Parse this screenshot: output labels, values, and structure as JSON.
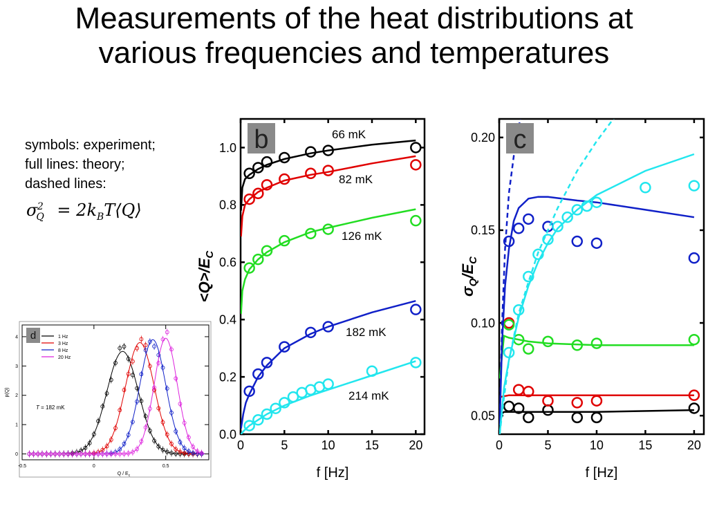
{
  "slide": {
    "title_line1": "Measurements of the heat distributions at",
    "title_line2": "various frequencies and temperatures",
    "notes": [
      "symbols: experiment;",
      "full lines: theory;",
      "dashed lines:"
    ],
    "formula": "σ_Q^2 = 2k_B T⟨Q⟩"
  },
  "chart_data": [
    {
      "panel": "b",
      "type": "scatter",
      "xlabel": "f [Hz]",
      "ylabel": "<Q>/E_C",
      "xlim": [
        0,
        21
      ],
      "ylim": [
        0,
        1.1
      ],
      "xticks": [
        0,
        5,
        10,
        15,
        20
      ],
      "yticks": [
        0.0,
        0.2,
        0.4,
        0.6,
        0.8,
        1.0
      ],
      "series": [
        {
          "name": "66 mK",
          "color": "#000000",
          "points": [
            [
              1,
              0.91
            ],
            [
              2,
              0.93
            ],
            [
              3,
              0.95
            ],
            [
              5,
              0.965
            ],
            [
              8,
              0.985
            ],
            [
              10,
              0.99
            ],
            [
              20,
              1.0
            ]
          ],
          "theory": [
            [
              0.05,
              0.78
            ],
            [
              0.2,
              0.86
            ],
            [
              0.5,
              0.89
            ],
            [
              1,
              0.905
            ],
            [
              2,
              0.925
            ],
            [
              3,
              0.94
            ],
            [
              5,
              0.96
            ],
            [
              8,
              0.98
            ],
            [
              10,
              0.99
            ],
            [
              15,
              1.01
            ],
            [
              20,
              1.025
            ]
          ]
        },
        {
          "name": "82 mK",
          "color": "#e00000",
          "points": [
            [
              1,
              0.82
            ],
            [
              2,
              0.84
            ],
            [
              3,
              0.87
            ],
            [
              5,
              0.89
            ],
            [
              8,
              0.91
            ],
            [
              10,
              0.92
            ],
            [
              20,
              0.94
            ]
          ],
          "theory": [
            [
              0.05,
              0.69
            ],
            [
              0.2,
              0.76
            ],
            [
              0.5,
              0.8
            ],
            [
              1,
              0.82
            ],
            [
              2,
              0.845
            ],
            [
              3,
              0.86
            ],
            [
              5,
              0.885
            ],
            [
              8,
              0.905
            ],
            [
              10,
              0.915
            ],
            [
              15,
              0.945
            ],
            [
              20,
              0.97
            ]
          ]
        },
        {
          "name": "126 mK",
          "color": "#22dd22",
          "points": [
            [
              1,
              0.58
            ],
            [
              2,
              0.61
            ],
            [
              3,
              0.64
            ],
            [
              5,
              0.675
            ],
            [
              8,
              0.7
            ],
            [
              10,
              0.715
            ],
            [
              20,
              0.745
            ]
          ],
          "theory": [
            [
              0.05,
              0.42
            ],
            [
              0.2,
              0.5
            ],
            [
              0.5,
              0.54
            ],
            [
              1,
              0.575
            ],
            [
              2,
              0.61
            ],
            [
              3,
              0.635
            ],
            [
              5,
              0.67
            ],
            [
              8,
              0.705
            ],
            [
              10,
              0.72
            ],
            [
              15,
              0.755
            ],
            [
              20,
              0.785
            ]
          ]
        },
        {
          "name": "182 mK",
          "color": "#1020c8",
          "points": [
            [
              1,
              0.15
            ],
            [
              2,
              0.21
            ],
            [
              3,
              0.25
            ],
            [
              5,
              0.305
            ],
            [
              8,
              0.355
            ],
            [
              10,
              0.375
            ],
            [
              20,
              0.435
            ]
          ],
          "theory": [
            [
              0.05,
              0.02
            ],
            [
              0.3,
              0.07
            ],
            [
              0.6,
              0.11
            ],
            [
              1,
              0.14
            ],
            [
              2,
              0.2
            ],
            [
              3,
              0.24
            ],
            [
              5,
              0.3
            ],
            [
              8,
              0.35
            ],
            [
              10,
              0.375
            ],
            [
              15,
              0.425
            ],
            [
              20,
              0.465
            ]
          ]
        },
        {
          "name": "214 mK",
          "color": "#22e6ee",
          "points": [
            [
              1,
              0.03
            ],
            [
              2,
              0.05
            ],
            [
              3,
              0.07
            ],
            [
              4,
              0.09
            ],
            [
              5,
              0.11
            ],
            [
              6,
              0.13
            ],
            [
              7,
              0.145
            ],
            [
              8,
              0.155
            ],
            [
              9,
              0.165
            ],
            [
              10,
              0.175
            ],
            [
              15,
              0.22
            ],
            [
              20,
              0.25
            ]
          ],
          "theory": [
            [
              0.05,
              0.0
            ],
            [
              0.3,
              0.01
            ],
            [
              1,
              0.03
            ],
            [
              2,
              0.05
            ],
            [
              3,
              0.07
            ],
            [
              5,
              0.1
            ],
            [
              8,
              0.135
            ],
            [
              10,
              0.155
            ],
            [
              15,
              0.205
            ],
            [
              20,
              0.255
            ]
          ]
        }
      ]
    },
    {
      "panel": "c",
      "type": "scatter",
      "xlabel": "f [Hz]",
      "ylabel": "σ_Q/E_C",
      "xlim": [
        0,
        21
      ],
      "ylim": [
        0.04,
        0.21
      ],
      "xticks": [
        0,
        5,
        10,
        15,
        20
      ],
      "yticks": [
        0.05,
        0.1,
        0.15,
        0.2
      ],
      "series": [
        {
          "name": "66 mK",
          "color": "#000000",
          "points": [
            [
              1,
              0.055
            ],
            [
              2,
              0.054
            ],
            [
              3,
              0.049
            ],
            [
              5,
              0.053
            ],
            [
              8,
              0.049
            ],
            [
              10,
              0.049
            ],
            [
              20,
              0.054
            ]
          ],
          "theory": [
            [
              0.05,
              0.05
            ],
            [
              0.5,
              0.052
            ],
            [
              1,
              0.052
            ],
            [
              5,
              0.052
            ],
            [
              10,
              0.052
            ],
            [
              20,
              0.053
            ]
          ]
        },
        {
          "name": "82 mK",
          "color": "#e00000",
          "points": [
            [
              1,
              0.1
            ],
            [
              2,
              0.064
            ],
            [
              3,
              0.063
            ],
            [
              5,
              0.058
            ],
            [
              8,
              0.057
            ],
            [
              10,
              0.058
            ],
            [
              20,
              0.061
            ]
          ],
          "theory": [
            [
              0.05,
              0.06
            ],
            [
              1,
              0.061
            ],
            [
              5,
              0.061
            ],
            [
              10,
              0.061
            ],
            [
              20,
              0.061
            ]
          ]
        },
        {
          "name": "126 mK",
          "color": "#22dd22",
          "points": [
            [
              1,
              0.099
            ],
            [
              2,
              0.091
            ],
            [
              3,
              0.086
            ],
            [
              5,
              0.09
            ],
            [
              8,
              0.088
            ],
            [
              10,
              0.089
            ],
            [
              20,
              0.091
            ]
          ],
          "theory": [
            [
              0.05,
              0.07
            ],
            [
              0.5,
              0.093
            ],
            [
              1,
              0.092
            ],
            [
              3,
              0.09
            ],
            [
              5,
              0.089
            ],
            [
              10,
              0.088
            ],
            [
              20,
              0.088
            ]
          ]
        },
        {
          "name": "182 mK",
          "color": "#1020c8",
          "points": [
            [
              1,
              0.144
            ],
            [
              2,
              0.151
            ],
            [
              3,
              0.156
            ],
            [
              5,
              0.152
            ],
            [
              8,
              0.144
            ],
            [
              10,
              0.143
            ],
            [
              20,
              0.135
            ]
          ],
          "theory": [
            [
              0.05,
              0.045
            ],
            [
              0.3,
              0.09
            ],
            [
              0.6,
              0.12
            ],
            [
              1,
              0.14
            ],
            [
              1.5,
              0.155
            ],
            [
              2,
              0.162
            ],
            [
              3,
              0.167
            ],
            [
              4,
              0.168
            ],
            [
              5,
              0.168
            ],
            [
              8,
              0.166
            ],
            [
              10,
              0.165
            ],
            [
              15,
              0.161
            ],
            [
              20,
              0.157
            ]
          ],
          "dashed": [
            [
              0.05,
              0.045
            ],
            [
              0.3,
              0.1
            ],
            [
              0.6,
              0.14
            ],
            [
              1,
              0.17
            ],
            [
              1.5,
              0.19
            ],
            [
              2,
              0.205
            ],
            [
              2.3,
              0.215
            ]
          ]
        },
        {
          "name": "214 mK",
          "color": "#22e6ee",
          "points": [
            [
              1,
              0.084
            ],
            [
              2,
              0.107
            ],
            [
              3,
              0.125
            ],
            [
              4,
              0.137
            ],
            [
              5,
              0.145
            ],
            [
              6,
              0.152
            ],
            [
              7,
              0.157
            ],
            [
              8,
              0.161
            ],
            [
              9,
              0.163
            ],
            [
              10,
              0.165
            ],
            [
              15,
              0.173
            ],
            [
              20,
              0.174
            ]
          ],
          "theory": [
            [
              0.05,
              0.04
            ],
            [
              0.5,
              0.065
            ],
            [
              1,
              0.08
            ],
            [
              2,
              0.103
            ],
            [
              3,
              0.12
            ],
            [
              4,
              0.133
            ],
            [
              5,
              0.143
            ],
            [
              6,
              0.151
            ],
            [
              8,
              0.161
            ],
            [
              10,
              0.169
            ],
            [
              15,
              0.182
            ],
            [
              20,
              0.191
            ]
          ],
          "dashed": [
            [
              0.05,
              0.04
            ],
            [
              0.5,
              0.06
            ],
            [
              1,
              0.08
            ],
            [
              2,
              0.105
            ],
            [
              3,
              0.122
            ],
            [
              4,
              0.138
            ],
            [
              5,
              0.15
            ],
            [
              6,
              0.162
            ],
            [
              8,
              0.182
            ],
            [
              10,
              0.198
            ],
            [
              12,
              0.212
            ]
          ]
        }
      ]
    },
    {
      "panel": "d",
      "type": "line",
      "xlabel": "Q / E_c",
      "ylabel": "p(Q)",
      "xlim": [
        -0.5,
        0.8
      ],
      "ylim": [
        -0.2,
        4.4
      ],
      "xticks": [
        -0.5,
        0.0,
        0.5
      ],
      "yticks": [
        0,
        1,
        2,
        3,
        4
      ],
      "annotation": "T = 182 mK",
      "series": [
        {
          "name": "1 Hz",
          "color": "#000000",
          "mean": 0.2,
          "sd": 0.11,
          "peak": 3.5
        },
        {
          "name": "3 Hz",
          "color": "#e00000",
          "mean": 0.32,
          "sd": 0.1,
          "peak": 3.8
        },
        {
          "name": "8 Hz",
          "color": "#1020c8",
          "mean": 0.41,
          "sd": 0.09,
          "peak": 3.9
        },
        {
          "name": "20 Hz",
          "color": "#dd22dd",
          "mean": 0.5,
          "sd": 0.08,
          "peak": 3.95
        }
      ]
    }
  ]
}
